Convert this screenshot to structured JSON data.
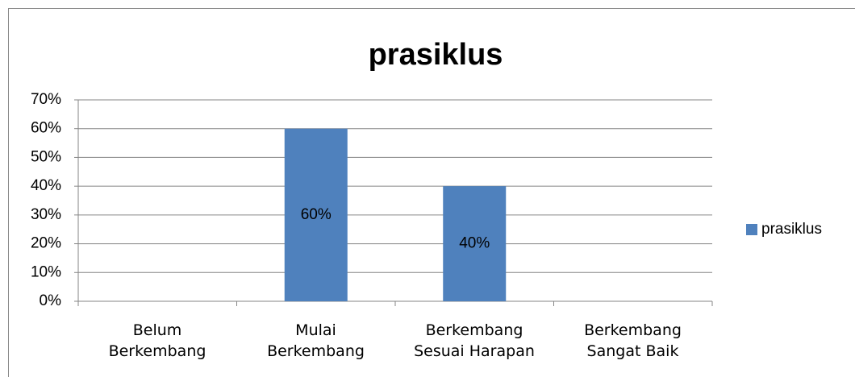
{
  "chart_data": {
    "type": "bar",
    "title": "prasiklus",
    "categories": [
      "Belum\nBerkembang",
      "Mulai\nBerkembang",
      "Berkembang\nSesuai Harapan",
      "Berkembang\nSangat Baik"
    ],
    "series": [
      {
        "name": "prasiklus",
        "color": "#4f81bd",
        "values": [
          0,
          60,
          40,
          0
        ],
        "value_labels": [
          null,
          "60%",
          "40%",
          null
        ]
      }
    ],
    "ylim": [
      0,
      70
    ],
    "yticks": [
      {
        "value": 0,
        "label": "0%"
      },
      {
        "value": 10,
        "label": "10%"
      },
      {
        "value": 20,
        "label": "20%"
      },
      {
        "value": 30,
        "label": "30%"
      },
      {
        "value": 40,
        "label": "40%"
      },
      {
        "value": 50,
        "label": "50%"
      },
      {
        "value": 60,
        "label": "60%"
      },
      {
        "value": 70,
        "label": "70%"
      }
    ],
    "grid": true,
    "legend": "right"
  }
}
